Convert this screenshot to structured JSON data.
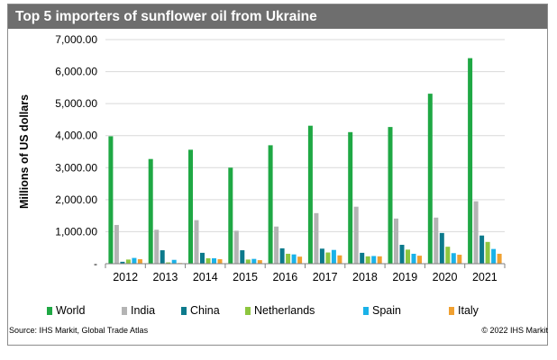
{
  "chart_data": {
    "type": "bar",
    "title": "Top 5 importers of sunflower oil from Ukraine",
    "xlabel": "",
    "ylabel": "Millions of US dollars",
    "ylim": [
      0,
      7000
    ],
    "yticks": [
      {
        "value": 0,
        "label": "-"
      },
      {
        "value": 1000,
        "label": "1,000.00"
      },
      {
        "value": 2000,
        "label": "2,000.00"
      },
      {
        "value": 3000,
        "label": "3,000.00"
      },
      {
        "value": 4000,
        "label": "4,000.00"
      },
      {
        "value": 5000,
        "label": "5,000.00"
      },
      {
        "value": 6000,
        "label": "6,000.00"
      },
      {
        "value": 7000,
        "label": "7,000.00"
      }
    ],
    "grid": true,
    "legend_position": "bottom",
    "categories": [
      "2012",
      "2013",
      "2014",
      "2015",
      "2016",
      "2017",
      "2018",
      "2019",
      "2020",
      "2021"
    ],
    "series": [
      {
        "name": "World",
        "color": "#1fa844",
        "values": [
          3980,
          3270,
          3560,
          3000,
          3700,
          4310,
          4110,
          4270,
          5310,
          6420
        ]
      },
      {
        "name": "India",
        "color": "#b4b4b4",
        "values": [
          1210,
          1060,
          1360,
          1030,
          1160,
          1580,
          1780,
          1410,
          1440,
          1950
        ]
      },
      {
        "name": "China",
        "color": "#0c7a8c",
        "values": [
          60,
          420,
          340,
          420,
          480,
          470,
          340,
          590,
          960,
          880
        ]
      },
      {
        "name": "Netherlands",
        "color": "#8dc63f",
        "values": [
          130,
          40,
          170,
          130,
          310,
          350,
          230,
          440,
          530,
          680
        ]
      },
      {
        "name": "Spain",
        "color": "#1ab2e8",
        "values": [
          180,
          120,
          170,
          150,
          290,
          430,
          240,
          310,
          330,
          460
        ]
      },
      {
        "name": "Italy",
        "color": "#f0a030",
        "values": [
          140,
          20,
          140,
          110,
          220,
          260,
          230,
          250,
          280,
          310
        ]
      }
    ]
  },
  "footer": {
    "source": "Source: IHS Markit, Global Trade Atlas",
    "copyright": "© 2022 IHS Markit"
  }
}
